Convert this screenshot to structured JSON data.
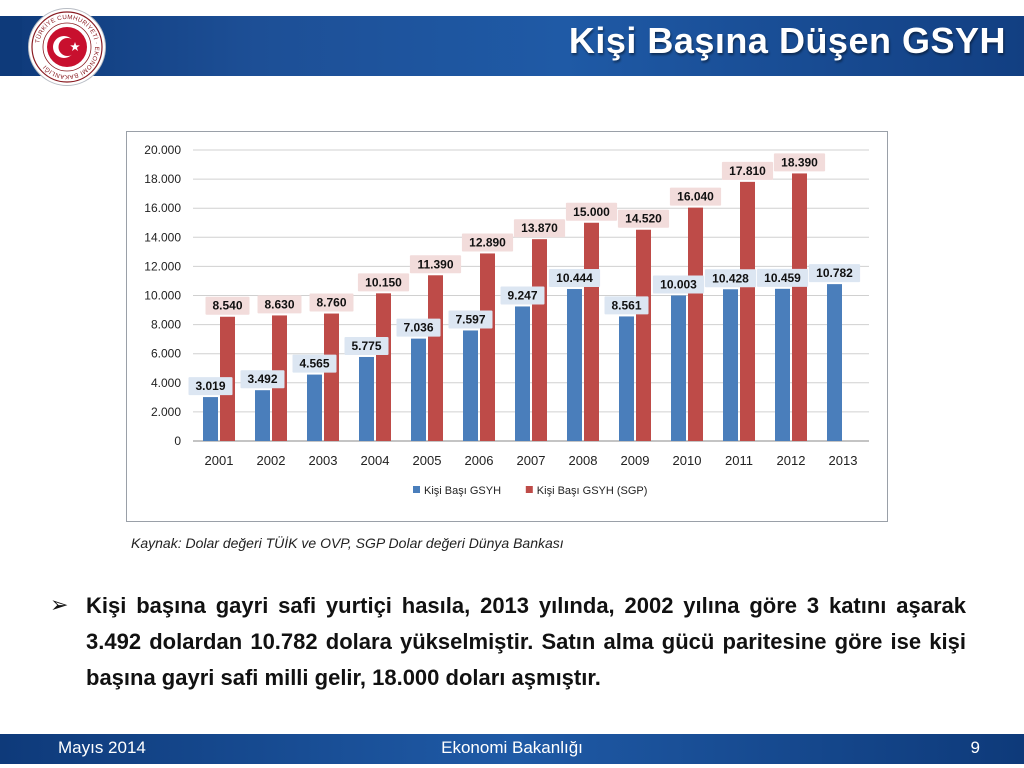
{
  "header": {
    "title": "Kişi Başına Düşen GSYH",
    "logo_text": "TÜRKİYE CUMHURİYETİ EKONOMİ BAKANLIĞI"
  },
  "chart_data": {
    "type": "bar",
    "categories": [
      "2001",
      "2002",
      "2003",
      "2004",
      "2005",
      "2006",
      "2007",
      "2008",
      "2009",
      "2010",
      "2011",
      "2012",
      "2013"
    ],
    "series": [
      {
        "name": "Kişi Başı GSYH",
        "color": "#4a7ebb",
        "values": [
          3019,
          3492,
          4565,
          5775,
          7036,
          7597,
          9247,
          10444,
          8561,
          10003,
          10428,
          10459,
          10782
        ],
        "labels": [
          "3.019",
          "3.492",
          "4.565",
          "5.775",
          "7.036",
          "7.597",
          "9.247",
          "10.444",
          "8.561",
          "10.003",
          "10.428",
          "10.459",
          "10.782"
        ]
      },
      {
        "name": "Kişi Başı GSYH (SGP)",
        "color": "#be4b48",
        "values": [
          8540,
          8630,
          8760,
          10150,
          11390,
          12890,
          13870,
          15000,
          14520,
          16040,
          17810,
          18390,
          null
        ],
        "labels": [
          "8.540",
          "8.630",
          "8.760",
          "10.150",
          "11.390",
          "12.890",
          "13.870",
          "15.000",
          "14.520",
          "16.040",
          "17.810",
          "18.390",
          ""
        ]
      }
    ],
    "ylim": [
      0,
      20000
    ],
    "yticks": [
      0,
      2000,
      4000,
      6000,
      8000,
      10000,
      12000,
      14000,
      16000,
      18000,
      20000
    ],
    "ytick_labels": [
      "0",
      "2.000",
      "4.000",
      "6.000",
      "8.000",
      "10.000",
      "12.000",
      "14.000",
      "16.000",
      "18.000",
      "20.000"
    ],
    "grid": true,
    "legend_position": "bottom",
    "title": "",
    "xlabel": "",
    "ylabel": ""
  },
  "source": "Kaynak: Dolar değeri TÜİK ve OVP, SGP Dolar değeri Dünya Bankası",
  "body": {
    "bullet": "➢",
    "text": "Kişi başına gayri safi yurtiçi hasıla, 2013 yılında, 2002 yılına göre 3 katını aşarak 3.492 dolardan 10.782 dolara yükselmiştir. Satın alma gücü paritesine  göre ise kişi başına gayri safi milli gelir, 18.000 doları aşmıştır."
  },
  "footer": {
    "date": "Mayıs 2014",
    "org": "Ekonomi Bakanlığı",
    "page": "9"
  },
  "colors": {
    "header_blue": "#1d4f96",
    "label_box_blue": "#dce6f2",
    "label_box_red": "#f2dcdb",
    "logo_red": "#c8102e"
  }
}
